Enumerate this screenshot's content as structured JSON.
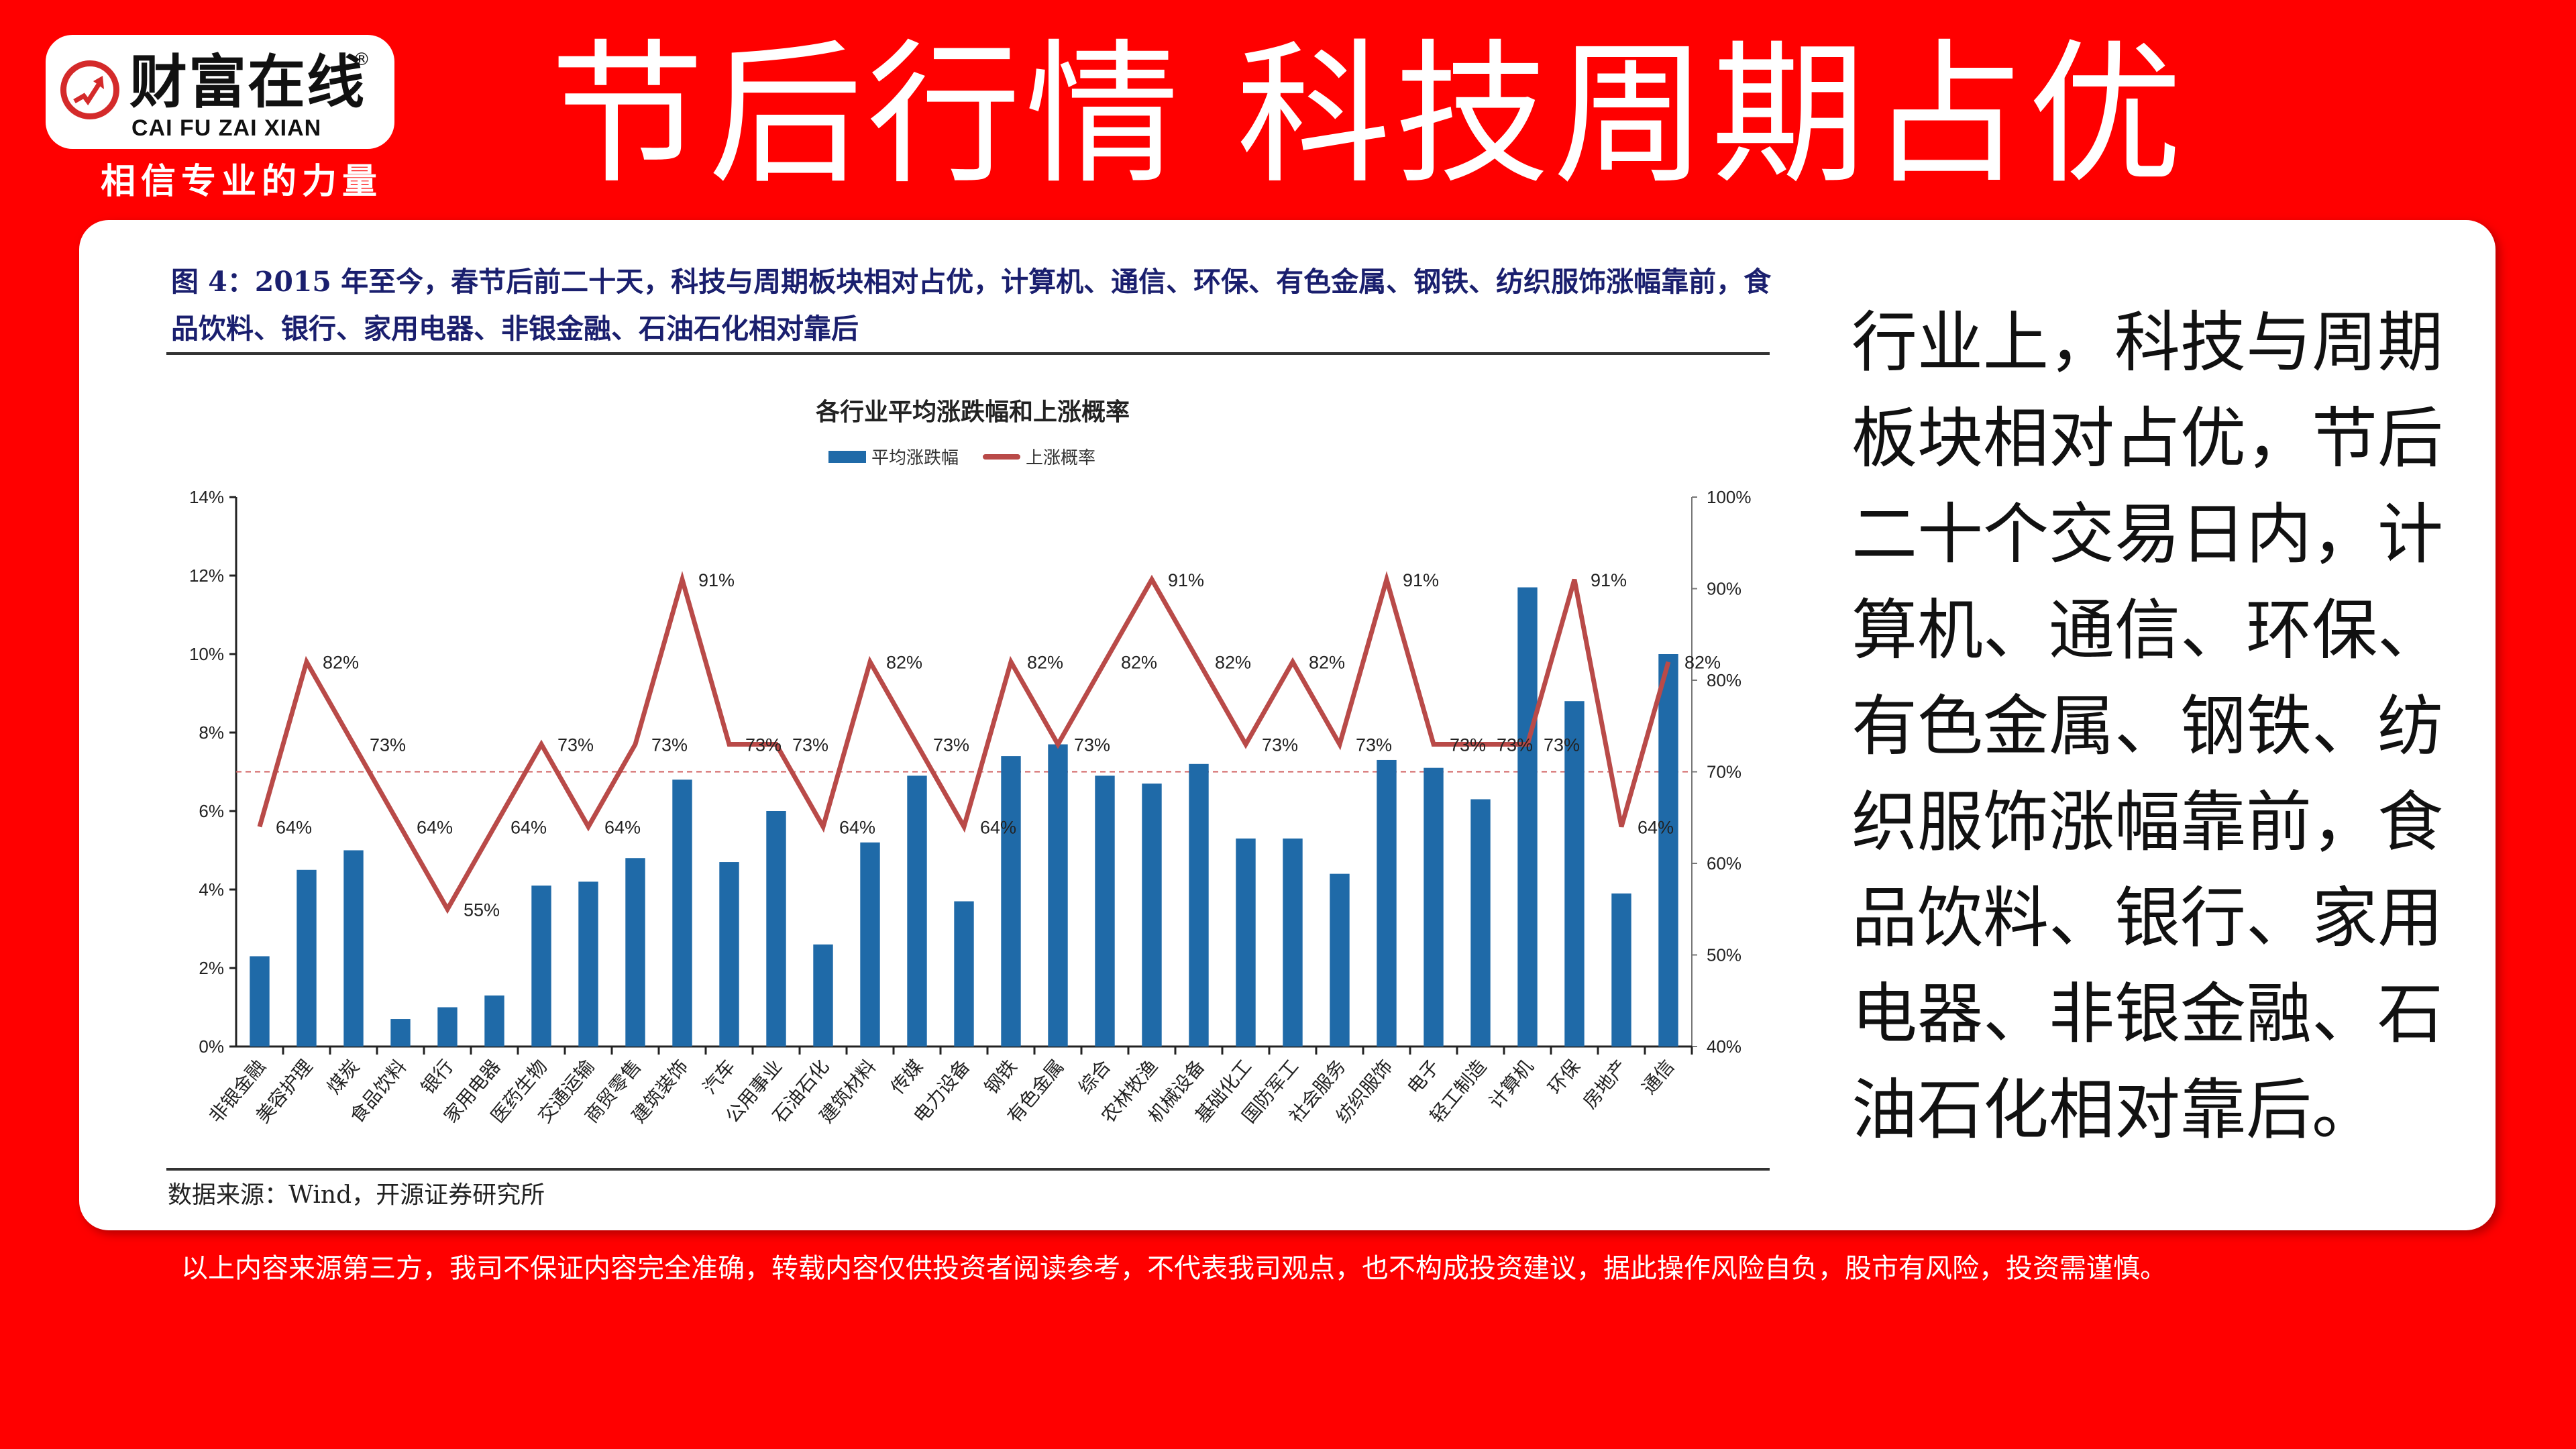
{
  "brand": {
    "name_cn": "财富在线",
    "registered": "®",
    "name_en": "CAI FU ZAI XIAN",
    "slogan": "相信专业的力量",
    "icon": "rising-arrow-circle-icon",
    "accent_color": "#d42a2a"
  },
  "headline": "节后行情 科技周期占优",
  "figure": {
    "caption": "图 4：2015 年至今，春节后前二十天，科技与周期板块相对占优，计算机、通信、环保、有色金属、钢铁、纺织服饰涨幅靠前，食品饮料、银行、家用电器、非银金融、石油石化相对靠后",
    "source": "数据来源：Wind，开源证券研究所"
  },
  "body_text": "行业上，科技与周期板块相对占优，节后二十个交易日内，计算机、通信、环保、有色金属、钢铁、纺织服饰涨幅靠前，食品饮料、银行、家用电器、非银金融、石油石化相对靠后。",
  "disclaimer": "以上内容来源第三方，我司不保证内容完全准确，转载内容仅供投资者阅读参考，不代表我司观点，也不构成投资建议，据此操作风险自负，股市有风险，投资需谨慎。",
  "colors": {
    "background": "#ff0000",
    "bar": "#1f6aa8",
    "line": "#b94a48",
    "caption": "#1a1f6e"
  },
  "chart_data": {
    "type": "bar",
    "title": "各行业平均涨跌幅和上涨概率",
    "legend": [
      "平均涨跌幅",
      "上涨概率"
    ],
    "legend_position": "top",
    "xlabel": "",
    "ylabel": "",
    "ylim": [
      0,
      14
    ],
    "y_ticks": [
      "0%",
      "2%",
      "4%",
      "6%",
      "8%",
      "10%",
      "12%",
      "14%"
    ],
    "y2lim": [
      40,
      100
    ],
    "y2_ticks": [
      "40%",
      "50%",
      "60%",
      "70%",
      "80%",
      "90%",
      "100%"
    ],
    "reference_line": {
      "axis": "y2",
      "value": 70,
      "style": "dashed"
    },
    "grid": false,
    "categories": [
      "非银金融",
      "美容护理",
      "煤炭",
      "食品饮料",
      "银行",
      "家用电器",
      "医药生物",
      "交通运输",
      "商贸零售",
      "建筑装饰",
      "汽车",
      "公用事业",
      "石油石化",
      "建筑材料",
      "传媒",
      "电力设备",
      "钢铁",
      "有色金属",
      "综合",
      "农林牧渔",
      "机械设备",
      "基础化工",
      "国防军工",
      "社会服务",
      "纺织服饰",
      "电子",
      "轻工制造",
      "计算机",
      "环保",
      "房地产",
      "通信"
    ],
    "series": [
      {
        "name": "平均涨跌幅",
        "type": "bar",
        "axis": "y",
        "unit": "%",
        "values": [
          2.3,
          4.5,
          5.0,
          0.7,
          1.0,
          1.3,
          4.1,
          4.2,
          4.8,
          6.8,
          4.7,
          6.0,
          2.6,
          5.2,
          6.9,
          3.7,
          7.4,
          7.7,
          6.9,
          6.7,
          7.2,
          5.3,
          5.3,
          4.4,
          7.3,
          7.1,
          6.3,
          11.7,
          8.8,
          3.9,
          10.0
        ]
      },
      {
        "name": "上涨概率",
        "type": "line",
        "axis": "y2",
        "unit": "%",
        "values": [
          64,
          82,
          73,
          64,
          55,
          64,
          73,
          64,
          73,
          91,
          73,
          73,
          64,
          82,
          73,
          64,
          82,
          73,
          82,
          91,
          82,
          73,
          82,
          73,
          91,
          73,
          73,
          73,
          91,
          64,
          82
        ],
        "labels": [
          "64%",
          "82%",
          "73%",
          "64%",
          "55%",
          "64%",
          "73%",
          "64%",
          "73%",
          "91%",
          "73%",
          "73%",
          "64%",
          "82%",
          "73%",
          "64%",
          "82%",
          "73%",
          "82%",
          "91%",
          "82%",
          "73%",
          "82%",
          "73%",
          "91%",
          "73%",
          "73%",
          "73%",
          "91%",
          "64%",
          "82%"
        ]
      }
    ]
  }
}
